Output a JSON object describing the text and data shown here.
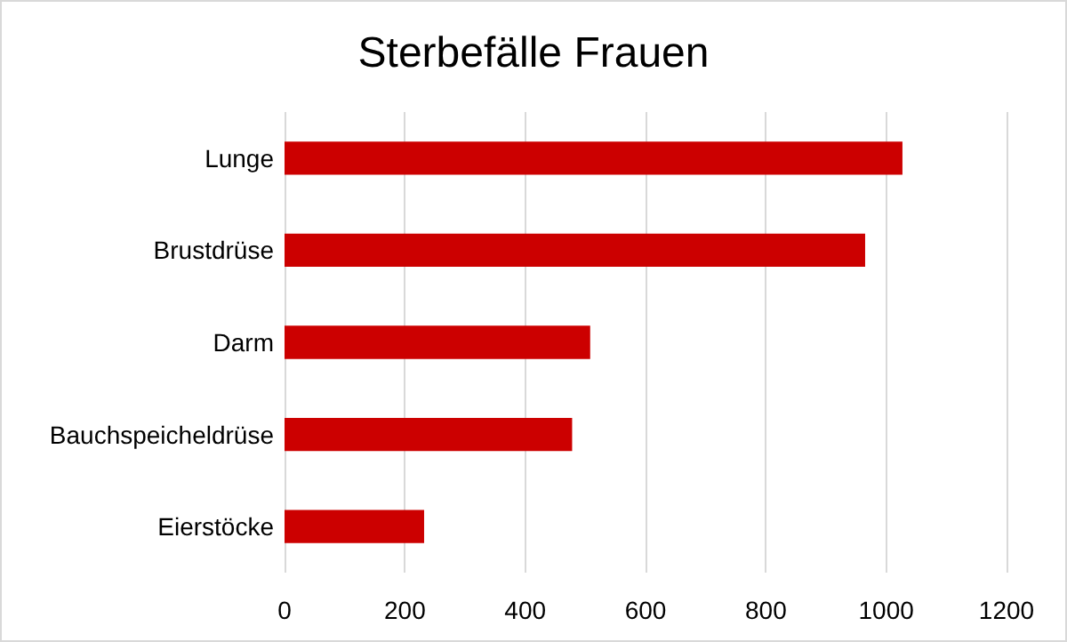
{
  "chart_data": {
    "type": "bar",
    "orientation": "horizontal",
    "title": "Sterbefälle Frauen",
    "categories": [
      "Lunge",
      "Brustdrüse",
      "Darm",
      "Bauchspeicheldrüse",
      "Eierstöcke"
    ],
    "values": [
      1027,
      965,
      508,
      478,
      232
    ],
    "color": "#cc0000",
    "xlim": [
      0,
      1200
    ],
    "xticks": [
      0,
      200,
      400,
      600,
      800,
      1000,
      1200
    ],
    "grid": "x"
  }
}
